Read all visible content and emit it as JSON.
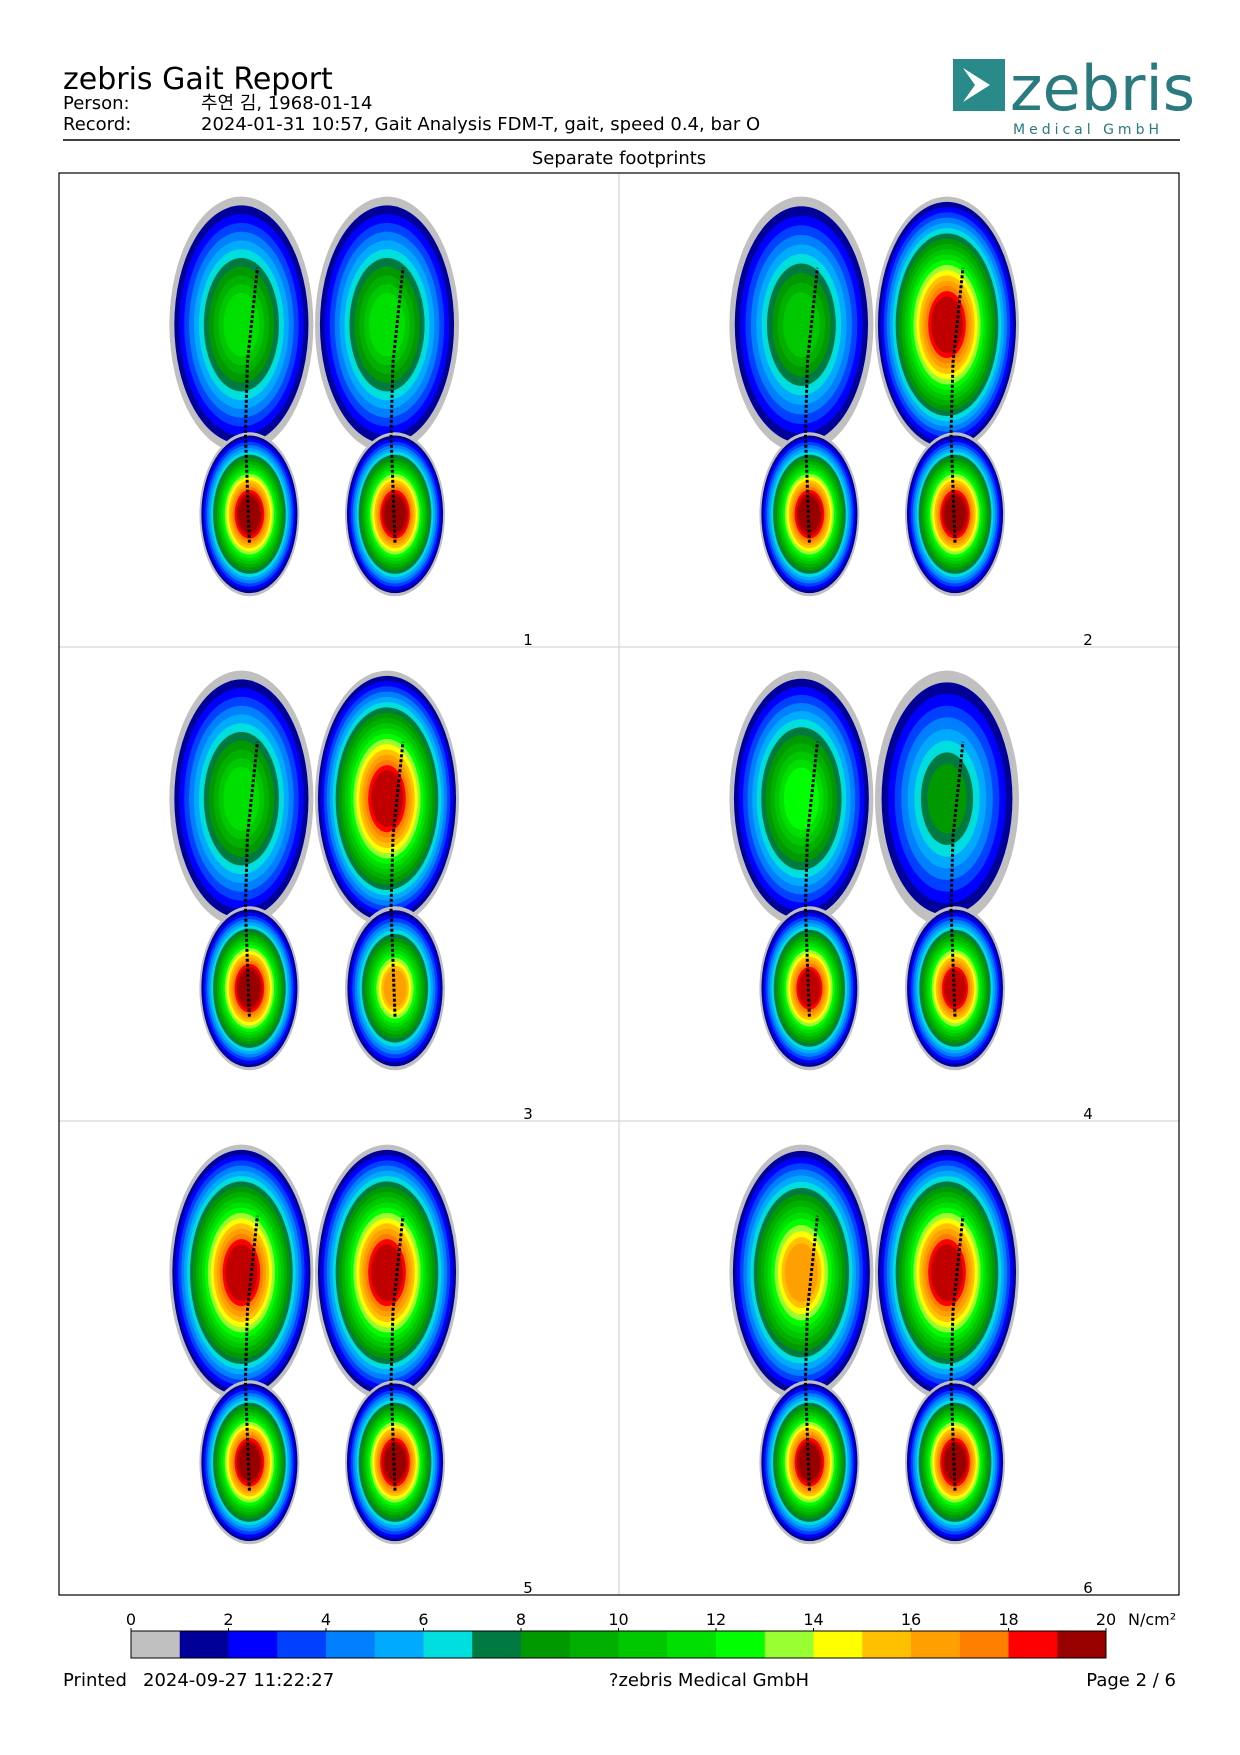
{
  "header": {
    "title": "zebris Gait Report",
    "person_label": "Person:",
    "person": "추연 김, 1968-01-14",
    "record_label": "Record:",
    "record": "2024-01-31 10:57, Gait Analysis FDM-T, gait, speed 0.4, bar O"
  },
  "logo": {
    "name": "zebris",
    "subtitle": "Medical GmbH"
  },
  "section_title": "Separate footprints",
  "panels": [
    {
      "label": "1",
      "peaks": [
        [
          11,
          20
        ],
        [
          11,
          20
        ]
      ]
    },
    {
      "label": "2",
      "peaks": [
        [
          10,
          20
        ],
        [
          19,
          20
        ]
      ]
    },
    {
      "label": "3",
      "peaks": [
        [
          11,
          20
        ],
        [
          19,
          16
        ]
      ]
    },
    {
      "label": "4",
      "peaks": [
        [
          12,
          19
        ],
        [
          8,
          19
        ]
      ]
    },
    {
      "label": "5",
      "peaks": [
        [
          19,
          20
        ],
        [
          19,
          20
        ]
      ]
    },
    {
      "label": "6",
      "peaks": [
        [
          16,
          20
        ],
        [
          19,
          20
        ]
      ]
    }
  ],
  "colorbar": {
    "lim": [
      0,
      20
    ],
    "ticks": [
      0,
      2,
      4,
      6,
      8,
      10,
      12,
      14,
      16,
      18,
      20
    ],
    "unit": "N/cm²",
    "colors": [
      "#c0c0c0",
      "#000099",
      "#0000ff",
      "#0040ff",
      "#0080ff",
      "#00aaff",
      "#00dddd",
      "#007a40",
      "#009900",
      "#00b000",
      "#00c800",
      "#00e000",
      "#00ff00",
      "#99ff33",
      "#ffff00",
      "#ffc000",
      "#ffa000",
      "#ff8000",
      "#ff0000",
      "#c00000",
      "#990000"
    ]
  },
  "footer": {
    "printed_label": "Printed",
    "printed": "2024-09-27 11:22:27",
    "company": "?zebris Medical GmbH",
    "page": "Page 2 / 6"
  }
}
